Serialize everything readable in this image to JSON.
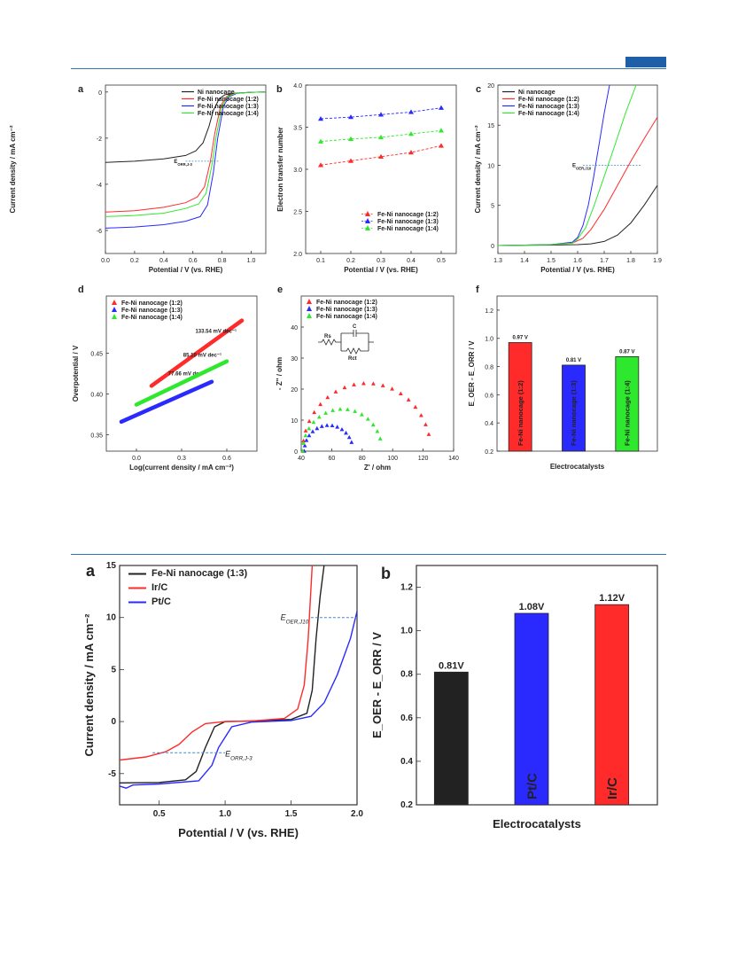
{
  "colors": {
    "black": "#222222",
    "red": "#ff2a2a",
    "blue": "#2a2aff",
    "green": "#2ee82e",
    "annot": "#4a86c8",
    "rule": "#2e75b6"
  },
  "chart_data": [
    {
      "panel": "a",
      "type": "line",
      "xlabel": "Potential / V (vs. RHE)",
      "ylabel": "Current density / mA cm⁻²",
      "xlim": [
        0.0,
        1.1
      ],
      "ylim": [
        -7,
        0.3
      ],
      "xticks": [
        "0.0",
        "0.2",
        "0.4",
        "0.6",
        "0.8",
        "1.0"
      ],
      "yticks": [
        "0",
        "-2",
        "-4",
        "-6"
      ],
      "annotation": "E_ORR,J-3",
      "legend_position": "top-right",
      "series": [
        {
          "name": "Ni nanocage",
          "color": "black",
          "x": [
            0.0,
            0.2,
            0.4,
            0.55,
            0.62,
            0.67,
            0.71,
            0.74,
            0.78,
            0.82,
            0.88,
            1.0,
            1.1
          ],
          "y": [
            -3.05,
            -3.0,
            -2.9,
            -2.75,
            -2.55,
            -2.2,
            -1.5,
            -0.8,
            -0.3,
            -0.12,
            -0.05,
            -0.01,
            0.0
          ]
        },
        {
          "name": "Fe-Ni nanocage (1:2)",
          "color": "red",
          "x": [
            0.0,
            0.2,
            0.4,
            0.55,
            0.63,
            0.68,
            0.72,
            0.75,
            0.79,
            0.83,
            0.88,
            1.0,
            1.1
          ],
          "y": [
            -5.2,
            -5.15,
            -5.0,
            -4.8,
            -4.55,
            -4.1,
            -3.0,
            -1.8,
            -0.6,
            -0.2,
            -0.06,
            -0.01,
            0.0
          ]
        },
        {
          "name": "Fe-Ni nanocage (1:3)",
          "color": "blue",
          "x": [
            0.0,
            0.2,
            0.4,
            0.55,
            0.65,
            0.7,
            0.74,
            0.77,
            0.81,
            0.85,
            0.9,
            1.0,
            1.1
          ],
          "y": [
            -5.9,
            -5.85,
            -5.75,
            -5.6,
            -5.4,
            -4.9,
            -3.5,
            -2.0,
            -0.6,
            -0.2,
            -0.06,
            -0.01,
            0.0
          ]
        },
        {
          "name": "Fe-Ni nanocage (1:4)",
          "color": "green",
          "x": [
            0.0,
            0.2,
            0.4,
            0.55,
            0.64,
            0.69,
            0.73,
            0.76,
            0.8,
            0.84,
            0.89,
            1.0,
            1.1
          ],
          "y": [
            -5.4,
            -5.35,
            -5.25,
            -5.05,
            -4.85,
            -4.4,
            -3.2,
            -1.9,
            -0.6,
            -0.2,
            -0.06,
            -0.01,
            0.0
          ]
        }
      ]
    },
    {
      "panel": "b",
      "type": "line",
      "xlabel": "Potential / V (vs. RHE)",
      "ylabel": "Electron transfer number",
      "xlim": [
        0.05,
        0.55
      ],
      "ylim": [
        2.0,
        4.0
      ],
      "xticks": [
        "0.1",
        "0.2",
        "0.3",
        "0.4",
        "0.5"
      ],
      "yticks": [
        "2.0",
        "2.5",
        "3.0",
        "3.5",
        "4.0"
      ],
      "legend_position": "bottom-right",
      "series": [
        {
          "name": "Fe-Ni nanocage (1:2)",
          "color": "red",
          "x": [
            0.1,
            0.2,
            0.3,
            0.4,
            0.5
          ],
          "y": [
            3.05,
            3.1,
            3.15,
            3.2,
            3.28
          ]
        },
        {
          "name": "Fe-Ni nanocage (1:3)",
          "color": "blue",
          "x": [
            0.1,
            0.2,
            0.3,
            0.4,
            0.5
          ],
          "y": [
            3.6,
            3.62,
            3.65,
            3.68,
            3.73
          ]
        },
        {
          "name": "Fe-Ni nanocage (1:4)",
          "color": "green",
          "x": [
            0.1,
            0.2,
            0.3,
            0.4,
            0.5
          ],
          "y": [
            3.33,
            3.36,
            3.38,
            3.42,
            3.46
          ]
        }
      ]
    },
    {
      "panel": "c",
      "type": "line",
      "xlabel": "Potential / V (vs. RHE)",
      "ylabel": "Current density / mA cm⁻²",
      "xlim": [
        1.3,
        1.9
      ],
      "ylim": [
        -1,
        20
      ],
      "xticks": [
        "1.3",
        "1.4",
        "1.5",
        "1.6",
        "1.7",
        "1.8",
        "1.9"
      ],
      "yticks": [
        "0",
        "5",
        "10",
        "15",
        "20"
      ],
      "annotation": "E_OER,J10",
      "legend_position": "top-left",
      "series": [
        {
          "name": "Ni nanocage",
          "color": "black",
          "x": [
            1.3,
            1.5,
            1.6,
            1.65,
            1.7,
            1.75,
            1.8,
            1.85,
            1.9
          ],
          "y": [
            0.0,
            0.05,
            0.1,
            0.2,
            0.5,
            1.3,
            2.8,
            5.0,
            7.5
          ]
        },
        {
          "name": "Fe-Ni nanocage (1:2)",
          "color": "red",
          "x": [
            1.3,
            1.5,
            1.58,
            1.62,
            1.65,
            1.7,
            1.75,
            1.8,
            1.85,
            1.9
          ],
          "y": [
            0.0,
            0.1,
            0.3,
            0.9,
            2.0,
            4.5,
            7.5,
            10.5,
            13.3,
            16.0
          ]
        },
        {
          "name": "Fe-Ni nanocage (1:3)",
          "color": "blue",
          "x": [
            1.3,
            1.5,
            1.58,
            1.6,
            1.62,
            1.64,
            1.66,
            1.68,
            1.7,
            1.72
          ],
          "y": [
            0.0,
            0.1,
            0.4,
            1.0,
            2.5,
            5.0,
            8.5,
            12.5,
            16.5,
            20.5
          ]
        },
        {
          "name": "Fe-Ni nanocage (1:4)",
          "color": "green",
          "x": [
            1.3,
            1.5,
            1.58,
            1.6,
            1.63,
            1.66,
            1.7,
            1.74,
            1.78,
            1.82
          ],
          "y": [
            0.0,
            0.1,
            0.3,
            0.8,
            2.2,
            4.8,
            8.6,
            12.5,
            16.5,
            20.5
          ]
        }
      ]
    },
    {
      "panel": "d",
      "type": "scatter",
      "xlabel": "Log(current density / mA cm⁻²)",
      "ylabel": "Overpotential / V",
      "xlim": [
        -0.2,
        0.8
      ],
      "ylim": [
        0.33,
        0.52
      ],
      "xticks": [
        "0.0",
        "0.3",
        "0.6"
      ],
      "yticks": [
        "0.35",
        "0.40",
        "0.45"
      ],
      "legend_position": "top-left",
      "series": [
        {
          "name": "Fe-Ni nanocage (1:2)",
          "color": "red",
          "x": [
            0.1,
            0.7
          ],
          "y": [
            0.41,
            0.49
          ],
          "label": "133.54 mV dec⁻¹"
        },
        {
          "name": "Fe-Ni nanocage (1:3)",
          "color": "blue",
          "x": [
            -0.1,
            0.5
          ],
          "y": [
            0.366,
            0.415
          ],
          "label": "77.66 mV dec⁻¹"
        },
        {
          "name": "Fe-Ni nanocage (1:4)",
          "color": "green",
          "x": [
            0.0,
            0.6
          ],
          "y": [
            0.387,
            0.44
          ],
          "label": "85.10 mV dec⁻¹"
        }
      ]
    },
    {
      "panel": "e",
      "type": "scatter",
      "xlabel": "Z' / ohm",
      "ylabel": "- Z'' / ohm",
      "xlim": [
        40,
        140
      ],
      "ylim": [
        0,
        50
      ],
      "xticks": [
        "40",
        "60",
        "80",
        "100",
        "120",
        "140"
      ],
      "yticks": [
        "0",
        "10",
        "20",
        "30",
        "40"
      ],
      "legend_position": "top-left",
      "circuit_labels": [
        "Rs",
        "C",
        "Rct"
      ],
      "series": [
        {
          "name": "Fe-Ni nanocage (1:2)",
          "color": "red",
          "center": 83,
          "radius": 42
        },
        {
          "name": "Fe-Ni nanocage (1:3)",
          "color": "blue",
          "center": 58,
          "radius": 16
        },
        {
          "name": "Fe-Ni nanocage (1:4)",
          "color": "green",
          "center": 67,
          "radius": 26
        }
      ]
    },
    {
      "panel": "f",
      "type": "bar",
      "xlabel": "Electrocatalysts",
      "ylabel": "E_OER - E_ORR / V",
      "ylim": [
        0.2,
        1.3
      ],
      "yticks": [
        "0.2",
        "0.4",
        "0.6",
        "0.8",
        "1.0",
        "1.2"
      ],
      "categories": [
        "Fe-Ni nanocage (1:2)",
        "Fe-Ni nanocage (1:3)",
        "Fe-Ni nanocage (1:4)"
      ],
      "values": [
        0.97,
        0.81,
        0.87
      ],
      "value_labels": [
        "0.97 V",
        "0.81 V",
        "0.87 V"
      ],
      "colors": [
        "red",
        "blue",
        "green"
      ]
    },
    {
      "panel": "a",
      "type": "line",
      "xlabel": "Potential / V (vs. RHE)",
      "ylabel": "Current density / mA cm⁻²",
      "xlim": [
        0.2,
        2.0
      ],
      "ylim": [
        -8,
        15
      ],
      "xticks": [
        "0.5",
        "1.0",
        "1.5",
        "2.0"
      ],
      "yticks": [
        "-5",
        "0",
        "5",
        "10",
        "15"
      ],
      "annotations": [
        "E_OER,J10",
        "E_ORR,J-3"
      ],
      "legend_position": "top-left",
      "series": [
        {
          "name": "Fe-Ni nanocage (1:3)",
          "color": "black",
          "x": [
            0.2,
            0.5,
            0.7,
            0.78,
            0.85,
            0.92,
            1.0,
            1.2,
            1.5,
            1.62,
            1.66,
            1.69,
            1.72,
            1.75
          ],
          "y": [
            -5.9,
            -5.85,
            -5.6,
            -4.8,
            -2.5,
            -0.5,
            0.0,
            0.05,
            0.2,
            0.8,
            3.0,
            8.0,
            12.0,
            15.2
          ]
        },
        {
          "name": "Ir/C",
          "color": "red",
          "x": [
            0.2,
            0.4,
            0.55,
            0.65,
            0.75,
            0.85,
            1.0,
            1.2,
            1.45,
            1.55,
            1.6,
            1.63,
            1.66
          ],
          "y": [
            -3.7,
            -3.4,
            -2.9,
            -2.2,
            -1.0,
            -0.2,
            0.0,
            0.05,
            0.3,
            1.2,
            3.5,
            8.0,
            15.2
          ]
        },
        {
          "name": "Pt/C",
          "color": "blue",
          "x": [
            0.2,
            0.25,
            0.3,
            0.5,
            0.8,
            0.9,
            0.95,
            1.05,
            1.2,
            1.5,
            1.65,
            1.75,
            1.85,
            1.95,
            2.0
          ],
          "y": [
            -6.2,
            -6.4,
            -6.1,
            -6.0,
            -5.7,
            -4.2,
            -2.5,
            -0.5,
            -0.05,
            0.1,
            0.5,
            1.8,
            4.5,
            8.0,
            10.6
          ]
        }
      ]
    },
    {
      "panel": "b",
      "type": "bar",
      "xlabel": "Electrocatalysts",
      "ylabel": "E_OER - E_ORR / V",
      "ylim": [
        0.2,
        1.3
      ],
      "yticks": [
        "0.2",
        "0.4",
        "0.6",
        "0.8",
        "1.0",
        "1.2"
      ],
      "categories": [
        "Fe-Ni nanocage (1:3)",
        "Pt/C",
        "Ir/C"
      ],
      "values": [
        0.81,
        1.08,
        1.12
      ],
      "value_labels": [
        "0.81V",
        "1.08V",
        "1.12V"
      ],
      "colors": [
        "black",
        "blue",
        "red"
      ]
    }
  ]
}
